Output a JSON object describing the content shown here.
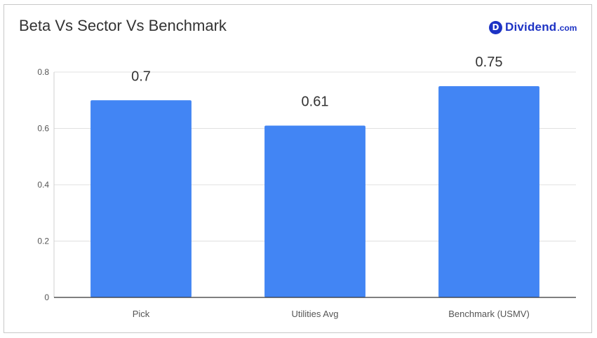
{
  "logo": {
    "badge": "D",
    "name": "Dividend",
    "suffix": ".com"
  },
  "chart_data": {
    "type": "bar",
    "title": "Beta Vs Sector Vs Benchmark",
    "categories": [
      "Pick",
      "Utilities Avg",
      "Benchmark (USMV)"
    ],
    "values": [
      0.7,
      0.61,
      0.75
    ],
    "data_labels": [
      "0.7",
      "0.61",
      "0.75"
    ],
    "xlabel": "",
    "ylabel": "",
    "ylim": [
      0,
      0.8
    ],
    "yticks": [
      "0",
      "0.2",
      "0.4",
      "0.6",
      "0.8"
    ],
    "grid": true,
    "bar_color": "#4285f4"
  }
}
